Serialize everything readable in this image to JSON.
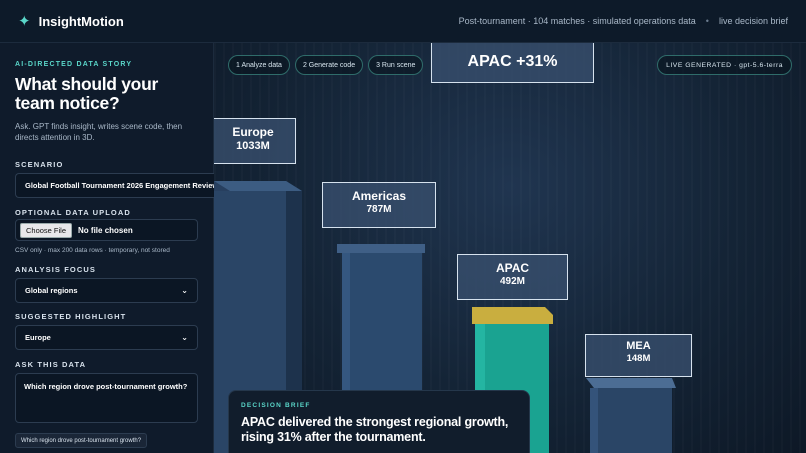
{
  "header": {
    "brand_name": "InsightMotion",
    "brand_icon": "sparkle-icon",
    "context_text": "Post-tournament · 104 matches · simulated operations data",
    "separator": "•",
    "mode_text": "live decision brief"
  },
  "sidebar": {
    "eyebrow": "AI-DIRECTED DATA STORY",
    "headline": "What should your team notice?",
    "subtext": "Ask. GPT finds insight, writes scene code, then directs attention in 3D.",
    "scenario_label": "SCENARIO",
    "scenario_value": "Global Football Tournament 2026 Engagement Review",
    "upload_label": "OPTIONAL DATA UPLOAD",
    "upload_button": "Choose File",
    "upload_status": "No file chosen",
    "upload_note": "CSV only · max 200 data rows · temporary, not stored",
    "focus_label": "ANALYSIS FOCUS",
    "focus_value": "Global regions",
    "highlight_label": "SUGGESTED HIGHLIGHT",
    "highlight_value": "Europe",
    "ask_label": "ASK THIS DATA",
    "ask_value": "Which region drove post-tournament growth?",
    "suggestion_chip": "Which region drove post-tournament growth?"
  },
  "scene": {
    "steps": [
      "1 Analyze data",
      "2 Generate code",
      "3 Run scene"
    ],
    "live_badge": "LIVE GENERATED · gpt-5.6-terra",
    "callout": "APAC  +31%",
    "colors": {
      "accent": "#5ad6c9",
      "bar_default": "#2c4a6e",
      "bar_highlight": "#1aa391",
      "cap_highlight": "#c9ae3f"
    },
    "bars": [
      {
        "region": "Europe",
        "value_label": "1033M",
        "value": 1033,
        "highlight": false
      },
      {
        "region": "Americas",
        "value_label": "787M",
        "value": 787,
        "highlight": false
      },
      {
        "region": "APAC",
        "value_label": "492M",
        "value": 492,
        "highlight": true
      },
      {
        "region": "MEA",
        "value_label": "148M",
        "value": 148,
        "highlight": false
      }
    ]
  },
  "brief": {
    "eyebrow": "DECISION BRIEF",
    "text": "APAC delivered the strongest regional growth, rising 31% after the tournament."
  }
}
